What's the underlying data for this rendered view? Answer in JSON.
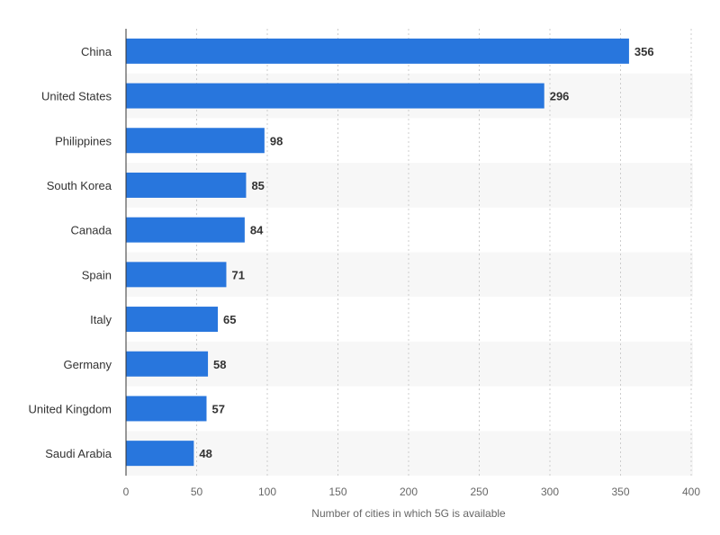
{
  "chart_data": {
    "type": "bar",
    "orientation": "horizontal",
    "categories": [
      "China",
      "United States",
      "Philippines",
      "South Korea",
      "Canada",
      "Spain",
      "Italy",
      "Germany",
      "United Kingdom",
      "Saudi Arabia"
    ],
    "values": [
      356,
      296,
      98,
      85,
      84,
      71,
      65,
      58,
      57,
      48
    ],
    "xlabel": "Number of cities in which 5G is available",
    "ylabel": "",
    "xlim": [
      0,
      400
    ],
    "xticks": [
      0,
      50,
      100,
      150,
      200,
      250,
      300,
      350,
      400
    ],
    "grid": "vertical dashed",
    "bar_color": "#2876dd",
    "stripe_color": "#f7f7f7"
  }
}
